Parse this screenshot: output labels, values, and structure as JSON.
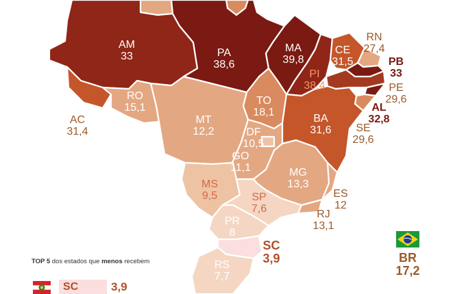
{
  "states": [
    {
      "code": "AM",
      "value": "33"
    },
    {
      "code": "PA",
      "value": "38,6"
    },
    {
      "code": "MA",
      "value": "39,8"
    },
    {
      "code": "PI",
      "value": "38,4"
    },
    {
      "code": "CE",
      "value": "31,5"
    },
    {
      "code": "RN",
      "value": "27,4"
    },
    {
      "code": "PB",
      "value": "33"
    },
    {
      "code": "PE",
      "value": "29,6"
    },
    {
      "code": "AL",
      "value": "32,8"
    },
    {
      "code": "SE",
      "value": "29,6"
    },
    {
      "code": "BA",
      "value": "31,6"
    },
    {
      "code": "TO",
      "value": "18,1"
    },
    {
      "code": "RO",
      "value": "15,1"
    },
    {
      "code": "AC",
      "value": "31,4"
    },
    {
      "code": "MT",
      "value": "12,2"
    },
    {
      "code": "DF",
      "value": "10,5"
    },
    {
      "code": "GO",
      "value": "11,1"
    },
    {
      "code": "MG",
      "value": "13,3"
    },
    {
      "code": "ES",
      "value": "12"
    },
    {
      "code": "RJ",
      "value": "13,1"
    },
    {
      "code": "MS",
      "value": "9,5"
    },
    {
      "code": "SP",
      "value": "7,6"
    },
    {
      "code": "PR",
      "value": "8"
    },
    {
      "code": "SC",
      "value": "3,9"
    },
    {
      "code": "RS",
      "value": "7,7"
    }
  ],
  "national": {
    "code": "BR",
    "value": "17,2"
  },
  "legend": {
    "prefix": "TOP 5",
    "middle": " dos estados que ",
    "emph": "menos",
    "suffix": " recebem",
    "first_code": "SC",
    "first_value": "3,9"
  },
  "colors": {
    "darkest": "#7a1a12",
    "dark": "#8f2617",
    "mid_dark": "#a33a1f",
    "mid": "#c4562a",
    "orange": "#d98a5e",
    "light": "#e3a782",
    "lighter": "#eec3a3",
    "lightest": "#f4d6c2",
    "sc": "#fbdede"
  }
}
